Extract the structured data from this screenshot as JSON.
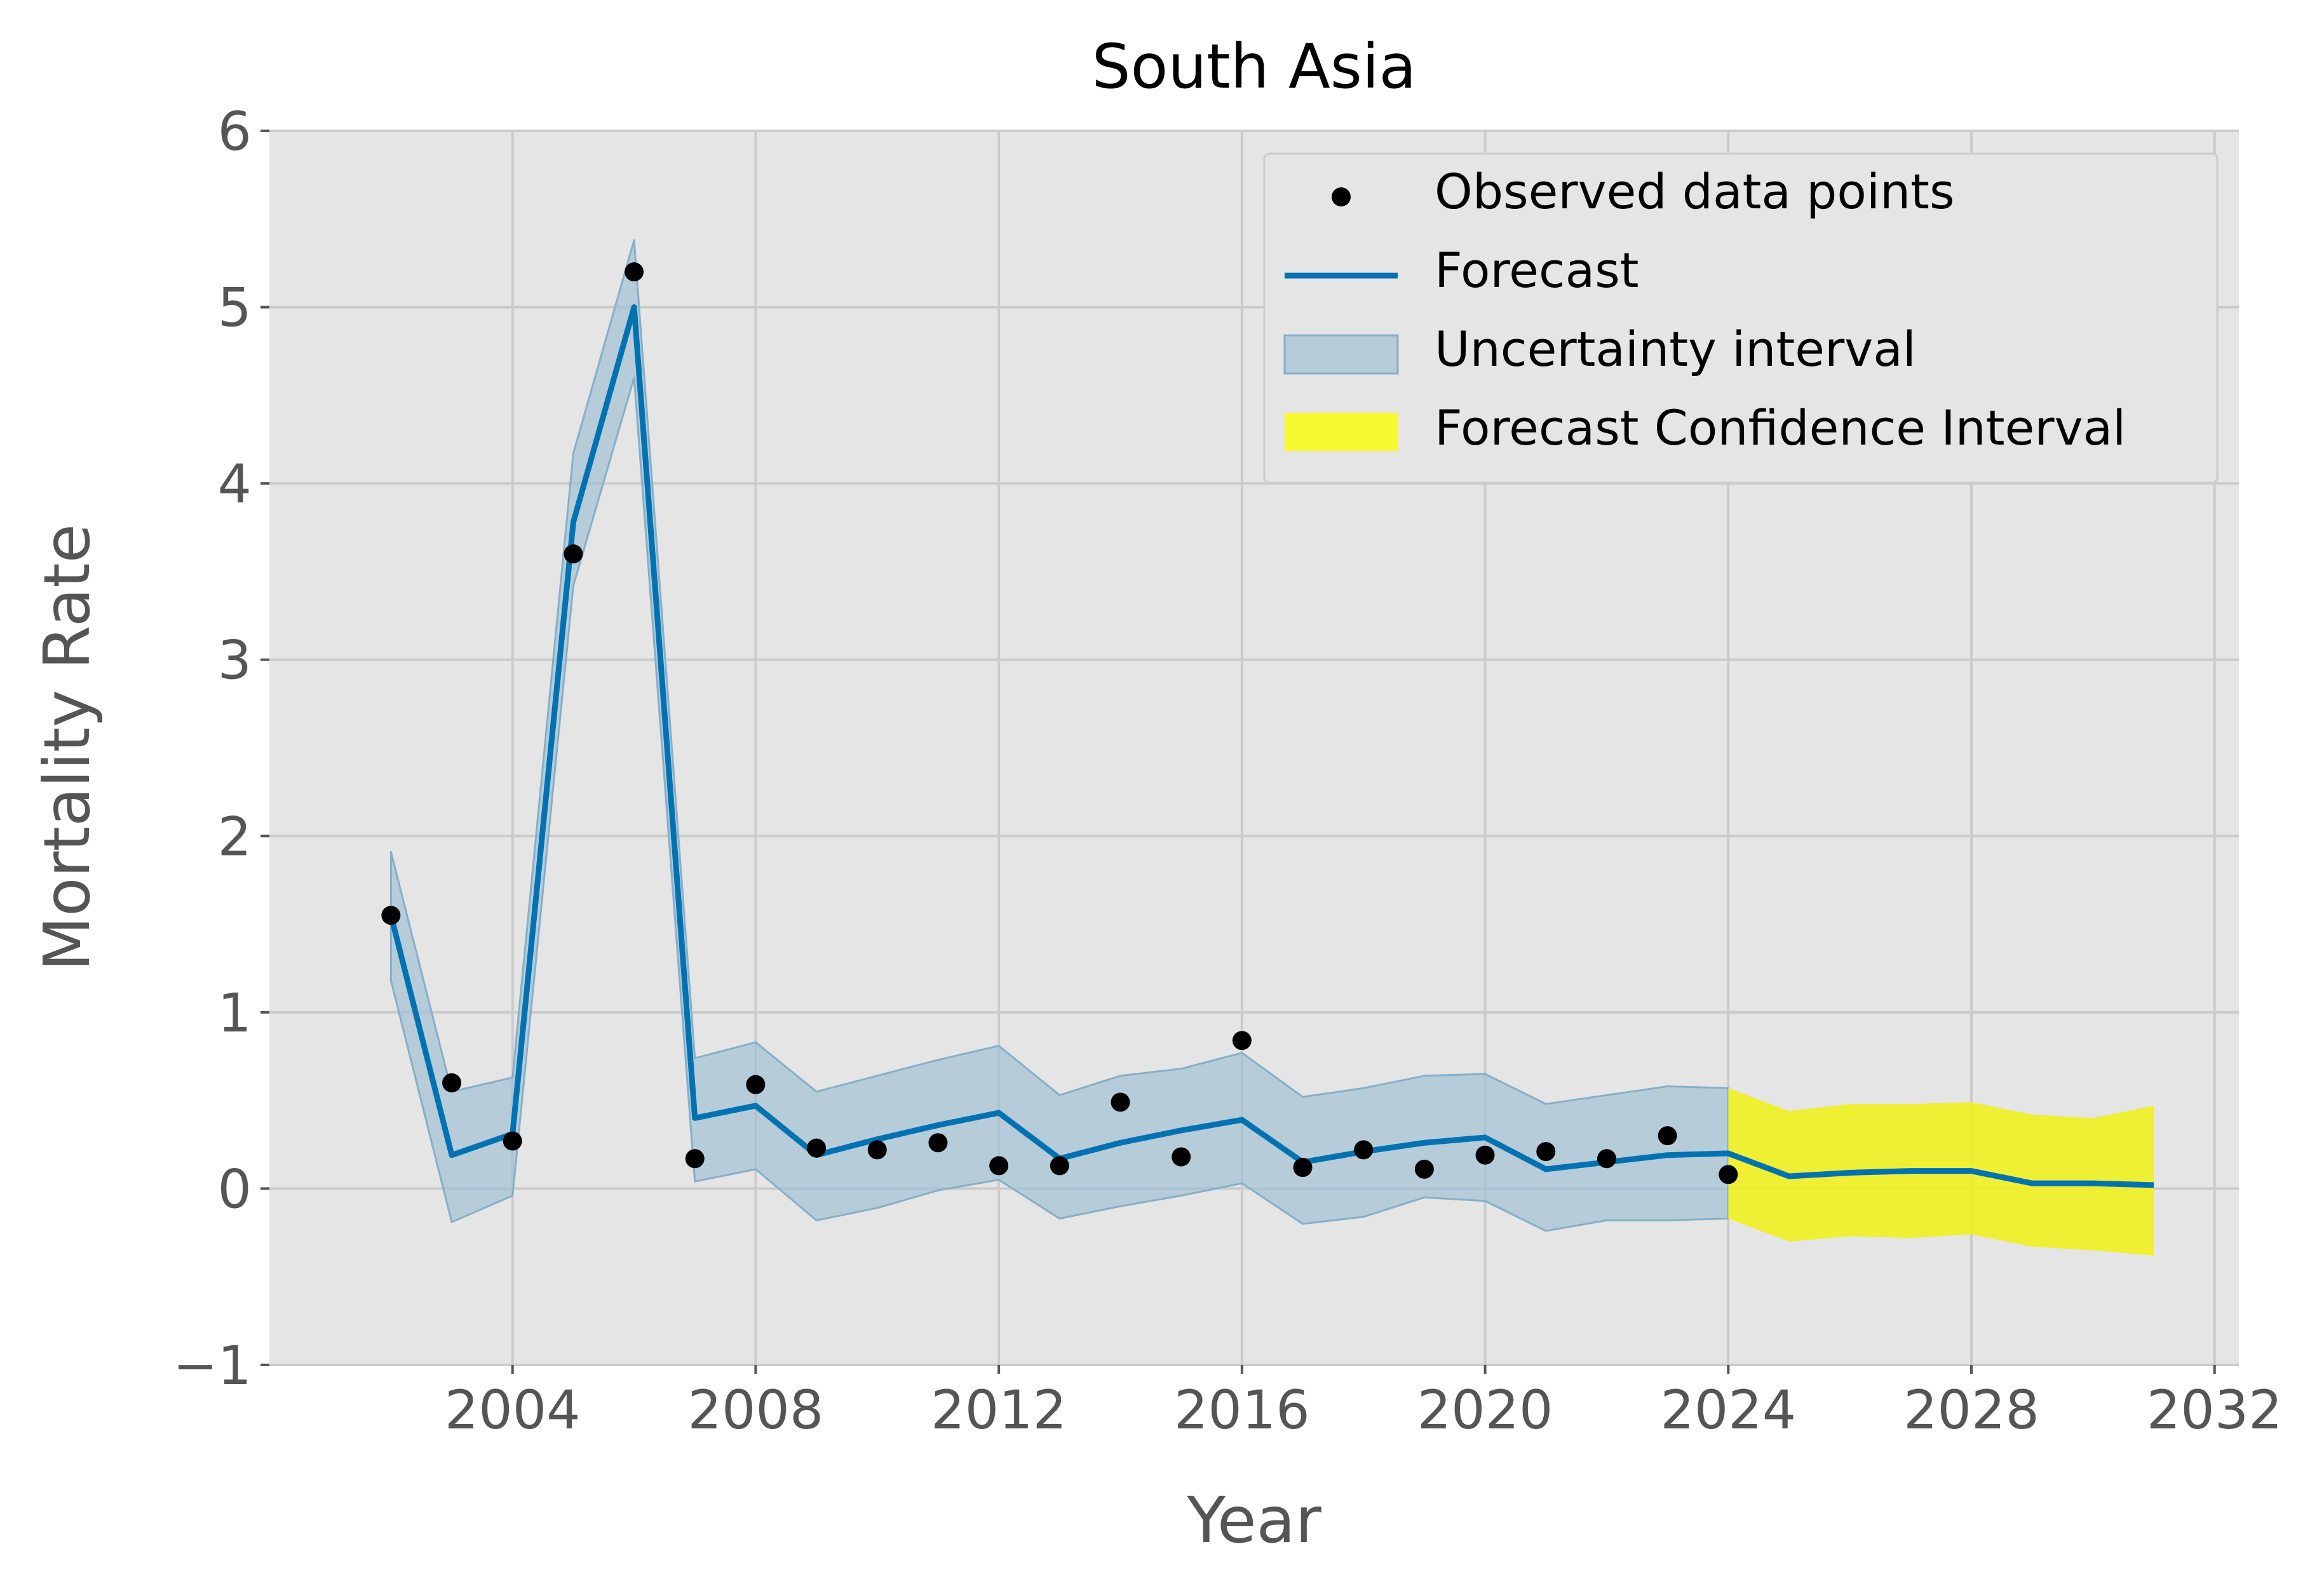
{
  "chart_data": {
    "type": "line",
    "title": "South Asia",
    "xlabel": "Year",
    "ylabel": "Mortality Rate",
    "xlim": [
      2000.0,
      2032.4
    ],
    "ylim": [
      -1,
      6
    ],
    "xticks": [
      2004,
      2008,
      2012,
      2016,
      2020,
      2024,
      2028,
      2032
    ],
    "yticks": [
      -1,
      0,
      1,
      2,
      3,
      4,
      5,
      6
    ],
    "xtick_labels": [
      "2004",
      "2008",
      "2012",
      "2016",
      "2020",
      "2024",
      "2028",
      "2032"
    ],
    "ytick_labels": [
      "−1",
      "0",
      "1",
      "2",
      "3",
      "4",
      "5",
      "6"
    ],
    "grid": true,
    "legend_position": "top-right",
    "legend": [
      {
        "label": "Observed data points",
        "kind": "marker"
      },
      {
        "label": "Forecast",
        "kind": "line"
      },
      {
        "label": "Uncertainty interval",
        "kind": "band"
      },
      {
        "label": "Forecast Confidence Interval",
        "kind": "band-yellow"
      }
    ],
    "colors": {
      "plot_background": "#e5e5e5",
      "grid": "#cbcbcb",
      "forecast": "#0072b2",
      "uncertainty": "#9dbfd3",
      "confidence": "#f0f020",
      "observed": "#000000",
      "tick_text": "#555555"
    },
    "series": [
      {
        "name": "Observed data points",
        "x": [
          2002,
          2003,
          2004,
          2005,
          2006,
          2007,
          2008,
          2009,
          2010,
          2011,
          2012,
          2013,
          2014,
          2015,
          2016,
          2017,
          2018,
          2019,
          2020,
          2021,
          2022,
          2023,
          2024
        ],
        "y": [
          1.55,
          0.6,
          0.27,
          3.6,
          5.2,
          0.17,
          0.59,
          0.23,
          0.22,
          0.26,
          0.13,
          0.13,
          0.49,
          0.18,
          0.84,
          0.12,
          0.22,
          0.11,
          0.19,
          0.21,
          0.17,
          0.3,
          0.08
        ]
      },
      {
        "name": "Forecast",
        "x": [
          2002,
          2003,
          2004,
          2005,
          2006,
          2007,
          2008,
          2009,
          2010,
          2011,
          2012,
          2013,
          2014,
          2015,
          2016,
          2017,
          2018,
          2019,
          2020,
          2021,
          2022,
          2023,
          2024,
          2025,
          2026,
          2027,
          2028,
          2029,
          2030,
          2031
        ],
        "y": [
          1.55,
          0.19,
          0.31,
          3.78,
          5.0,
          0.4,
          0.47,
          0.19,
          0.28,
          0.36,
          0.43,
          0.17,
          0.26,
          0.33,
          0.39,
          0.15,
          0.21,
          0.26,
          0.29,
          0.11,
          0.15,
          0.19,
          0.2,
          0.07,
          0.09,
          0.1,
          0.1,
          0.03,
          0.03,
          0.02
        ]
      },
      {
        "name": "Uncertainty interval",
        "x": [
          2002,
          2003,
          2004,
          2005,
          2006,
          2007,
          2008,
          2009,
          2010,
          2011,
          2012,
          2013,
          2014,
          2015,
          2016,
          2017,
          2018,
          2019,
          2020,
          2021,
          2022,
          2023,
          2024
        ],
        "lower": [
          1.18,
          -0.19,
          -0.04,
          3.42,
          4.6,
          0.04,
          0.11,
          -0.18,
          -0.11,
          -0.01,
          0.05,
          -0.17,
          -0.1,
          -0.04,
          0.03,
          -0.2,
          -0.16,
          -0.05,
          -0.07,
          -0.24,
          -0.18,
          -0.18,
          -0.17
        ],
        "upper": [
          1.91,
          0.55,
          0.63,
          4.17,
          5.38,
          0.74,
          0.83,
          0.55,
          0.64,
          0.73,
          0.81,
          0.53,
          0.64,
          0.68,
          0.77,
          0.52,
          0.57,
          0.64,
          0.65,
          0.48,
          0.53,
          0.58,
          0.57
        ]
      },
      {
        "name": "Forecast Confidence Interval",
        "x": [
          2024,
          2025,
          2026,
          2027,
          2028,
          2029,
          2030,
          2031
        ],
        "lower": [
          -0.17,
          -0.3,
          -0.27,
          -0.28,
          -0.26,
          -0.33,
          -0.35,
          -0.38
        ],
        "upper": [
          0.57,
          0.44,
          0.48,
          0.48,
          0.49,
          0.42,
          0.4,
          0.47
        ]
      }
    ]
  }
}
